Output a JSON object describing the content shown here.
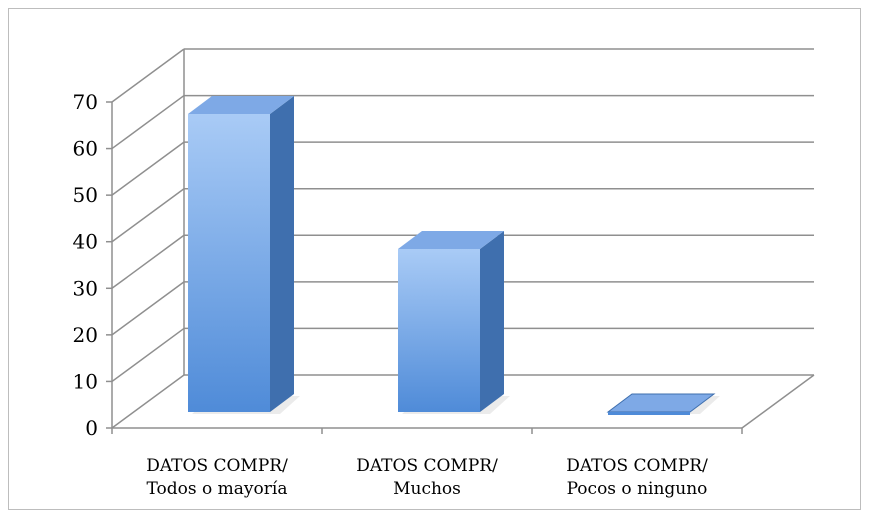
{
  "chart_data": {
    "type": "bar",
    "title": "",
    "xlabel": "",
    "ylabel": "",
    "ylim": [
      0,
      70
    ],
    "yticks": [
      0,
      10,
      20,
      30,
      40,
      50,
      60,
      70
    ],
    "grid": true,
    "style": "3d-column",
    "categories": [
      [
        "DATOS COMPR/",
        "Todos o mayoría"
      ],
      [
        "DATOS COMPR/",
        "Muchos"
      ],
      [
        "DATOS COMPR/",
        "Pocos o ninguno"
      ]
    ],
    "values": [
      64,
      35,
      0
    ],
    "colors": {
      "bar_front_top": "#a9cbf6",
      "bar_front_bottom": "#4f8bd8",
      "bar_side": "#3f6fae",
      "bar_top": "#7ea9e6",
      "grid": "#8f8f8f",
      "axis": "#8f8f8f"
    }
  }
}
